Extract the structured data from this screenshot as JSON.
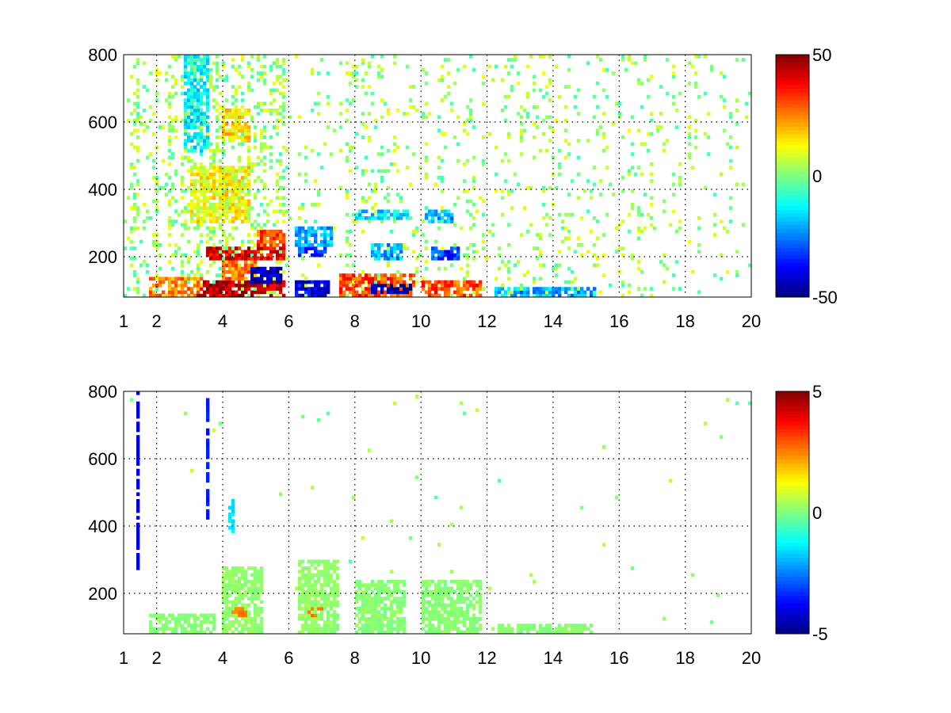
{
  "chart_data": [
    {
      "type": "heatmap",
      "panel": "top",
      "x_ticks": [
        1,
        2,
        4,
        6,
        8,
        10,
        12,
        14,
        16,
        18,
        20
      ],
      "x_tick_labels": [
        "1",
        "2",
        "4",
        "6",
        "8",
        "10",
        "12",
        "14",
        "16",
        "18",
        "20"
      ],
      "y_ticks": [
        200,
        400,
        600,
        800
      ],
      "y_tick_labels": [
        "200",
        "400",
        "600",
        "800"
      ],
      "xlim": [
        1,
        20
      ],
      "ylim": [
        80,
        800
      ],
      "grid": true,
      "colormap": "jet",
      "colorbar": {
        "range": [
          -50,
          50
        ],
        "tick_values": [
          50,
          0,
          -50
        ],
        "tick_labels": [
          "50",
          "0",
          "-50"
        ]
      },
      "title": "",
      "xlabel": "",
      "ylabel": "",
      "noise_level": 18,
      "features": [
        {
          "x": [
            3.2,
            5.9
          ],
          "y": [
            80,
            130
          ],
          "value": 45
        },
        {
          "x": [
            3.5,
            5.9
          ],
          "y": [
            190,
            230
          ],
          "value": 40
        },
        {
          "x": [
            1.8,
            3.4
          ],
          "y": [
            80,
            140
          ],
          "value": 25
        },
        {
          "x": [
            4.0,
            5.0
          ],
          "y": [
            130,
            190
          ],
          "value": 25
        },
        {
          "x": [
            4.8,
            5.8
          ],
          "y": [
            120,
            170
          ],
          "value": -45
        },
        {
          "x": [
            5.0,
            5.9
          ],
          "y": [
            230,
            280
          ],
          "value": 30
        },
        {
          "x": [
            6.2,
            7.2
          ],
          "y": [
            80,
            130
          ],
          "value": -40
        },
        {
          "x": [
            6.3,
            7.1
          ],
          "y": [
            200,
            230
          ],
          "value": -30
        },
        {
          "x": [
            6.2,
            7.3
          ],
          "y": [
            230,
            290
          ],
          "value": -20
        },
        {
          "x": [
            7.5,
            9.8
          ],
          "y": [
            80,
            150
          ],
          "value": 30
        },
        {
          "x": [
            8.5,
            9.7
          ],
          "y": [
            90,
            120
          ],
          "value": -45
        },
        {
          "x": [
            8.5,
            9.4
          ],
          "y": [
            190,
            240
          ],
          "value": -20
        },
        {
          "x": [
            8.0,
            9.6
          ],
          "y": [
            310,
            340
          ],
          "value": -15
        },
        {
          "x": [
            10.0,
            11.8
          ],
          "y": [
            80,
            130
          ],
          "value": 30
        },
        {
          "x": [
            10.3,
            11.2
          ],
          "y": [
            190,
            230
          ],
          "value": -30
        },
        {
          "x": [
            10.1,
            11.0
          ],
          "y": [
            300,
            340
          ],
          "value": -20
        },
        {
          "x": [
            12.2,
            15.3
          ],
          "y": [
            80,
            110
          ],
          "value": -20
        },
        {
          "x": [
            3.0,
            4.8
          ],
          "y": [
            300,
            470
          ],
          "value": 12
        },
        {
          "x": [
            2.8,
            3.6
          ],
          "y": [
            500,
            800
          ],
          "value": -12
        },
        {
          "x": [
            4.0,
            4.8
          ],
          "y": [
            540,
            640
          ],
          "value": 15
        }
      ]
    },
    {
      "type": "heatmap",
      "panel": "bottom",
      "x_ticks": [
        1,
        2,
        4,
        6,
        8,
        10,
        12,
        14,
        16,
        18,
        20
      ],
      "x_tick_labels": [
        "1",
        "2",
        "4",
        "6",
        "8",
        "10",
        "12",
        "14",
        "16",
        "18",
        "20"
      ],
      "y_ticks": [
        200,
        400,
        600,
        800
      ],
      "y_tick_labels": [
        "200",
        "400",
        "600",
        "800"
      ],
      "xlim": [
        1,
        20
      ],
      "ylim": [
        80,
        800
      ],
      "grid": true,
      "colormap": "jet",
      "colorbar": {
        "range": [
          -5,
          5
        ],
        "tick_values": [
          5,
          0,
          -5
        ],
        "tick_labels": [
          "5",
          "0",
          "-5"
        ]
      },
      "title": "",
      "xlabel": "",
      "ylabel": "",
      "noise_level": 0.4,
      "features": [
        {
          "x": [
            4.0,
            5.2
          ],
          "y": [
            80,
            280
          ],
          "value": 0.2
        },
        {
          "x": [
            4.3,
            4.7
          ],
          "y": [
            130,
            160
          ],
          "value": 2.5
        },
        {
          "x": [
            6.5,
            7.0
          ],
          "y": [
            130,
            160
          ],
          "value": 2.5
        },
        {
          "x": [
            1.8,
            3.8
          ],
          "y": [
            80,
            140
          ],
          "value": 0.1
        },
        {
          "x": [
            6.3,
            7.5
          ],
          "y": [
            80,
            300
          ],
          "value": 0.2
        },
        {
          "x": [
            8.0,
            9.5
          ],
          "y": [
            80,
            240
          ],
          "value": 0.1
        },
        {
          "x": [
            10.0,
            11.8
          ],
          "y": [
            80,
            240
          ],
          "value": 0.1
        },
        {
          "x": [
            12.3,
            15.2
          ],
          "y": [
            80,
            110
          ],
          "value": 0.1
        },
        {
          "x": [
            1.4,
            1.5
          ],
          "y": [
            250,
            800
          ],
          "value": -4
        },
        {
          "x": [
            3.5,
            3.6
          ],
          "y": [
            400,
            780
          ],
          "value": -3.5
        },
        {
          "x": [
            4.2,
            4.4
          ],
          "y": [
            380,
            480
          ],
          "value": -1.5
        }
      ]
    }
  ]
}
